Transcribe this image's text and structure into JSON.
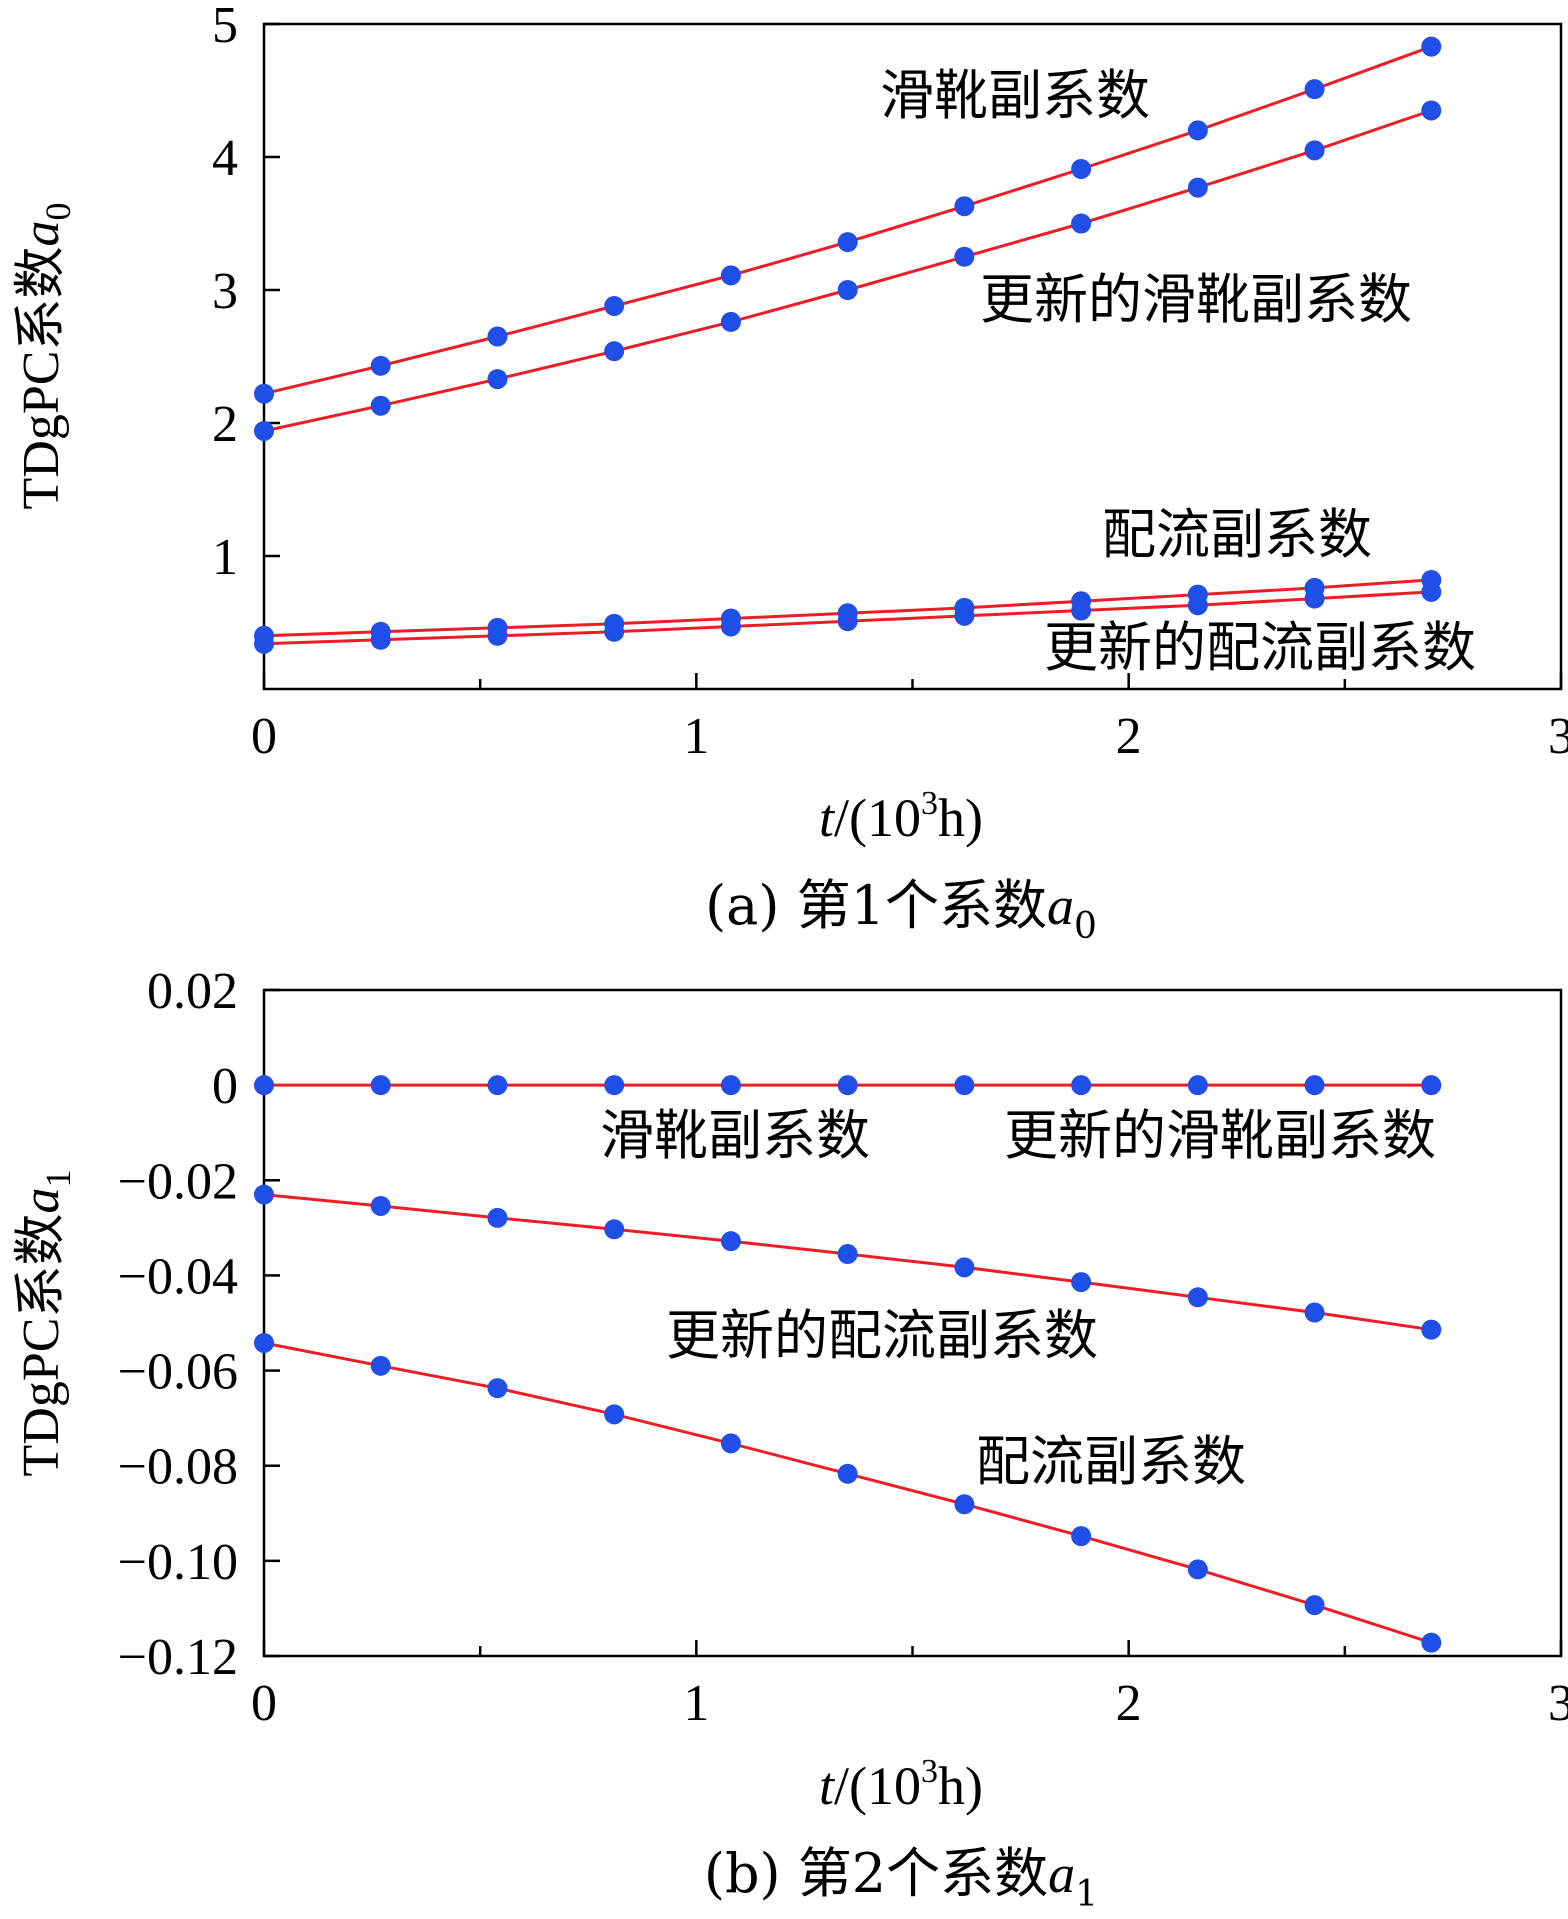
{
  "colors": {
    "line": "#ee1c25",
    "marker": "#1f4fe6",
    "axis": "#000000",
    "text": "#000000"
  },
  "chart_data": [
    {
      "id": "a",
      "type": "line",
      "caption": {
        "prefix": "(a) 第1个系数",
        "var": "a",
        "sub": "0"
      },
      "ylabel": {
        "prefix": "TDgPC系数",
        "var": "a",
        "sub": "0"
      },
      "xlabel": {
        "var": "t",
        "rest1": "/(10",
        "sup": "3",
        "rest2": "h)"
      },
      "xlim": [
        0,
        3
      ],
      "ylim": [
        0,
        5
      ],
      "xticks": [
        0,
        1,
        2,
        3
      ],
      "xtick_labels": [
        "0",
        "1",
        "2",
        "3"
      ],
      "yticks": [
        1,
        2,
        3,
        4,
        5
      ],
      "ytick_labels": [
        "1",
        "2",
        "3",
        "4",
        "5"
      ],
      "x": [
        0,
        0.27,
        0.54,
        0.81,
        1.08,
        1.35,
        1.62,
        1.89,
        2.16,
        2.43,
        2.7
      ],
      "series": [
        {
          "name": "滑靴副系数",
          "values": [
            2.22,
            2.43,
            2.65,
            2.88,
            3.11,
            3.36,
            3.63,
            3.91,
            4.2,
            4.51,
            4.83
          ]
        },
        {
          "name": "更新的滑靴副系数",
          "values": [
            1.94,
            2.13,
            2.33,
            2.54,
            2.76,
            3.0,
            3.25,
            3.5,
            3.77,
            4.05,
            4.35
          ]
        },
        {
          "name": "配流副系数",
          "values": [
            0.4,
            0.43,
            0.46,
            0.49,
            0.53,
            0.57,
            0.61,
            0.66,
            0.71,
            0.76,
            0.82
          ]
        },
        {
          "name": "更新的配流副系数",
          "values": [
            0.34,
            0.37,
            0.4,
            0.43,
            0.47,
            0.51,
            0.55,
            0.59,
            0.63,
            0.68,
            0.73
          ]
        }
      ],
      "annotations": [
        "滑靴副系数",
        "更新的滑靴副系数",
        "配流副系数",
        "更新的配流副系数"
      ]
    },
    {
      "id": "b",
      "type": "line",
      "caption": {
        "prefix": "(b) 第2个系数",
        "var": "a",
        "sub": "1"
      },
      "ylabel": {
        "prefix": "TDgPC系数",
        "var": "a",
        "sub": "1"
      },
      "xlabel": {
        "var": "t",
        "rest1": "/(10",
        "sup": "3",
        "rest2": "h)"
      },
      "xlim": [
        0,
        3
      ],
      "ylim": [
        -0.12,
        0.02
      ],
      "xticks": [
        0,
        1,
        2,
        3
      ],
      "xtick_labels": [
        "0",
        "1",
        "2",
        "3"
      ],
      "yticks": [
        0.02,
        0,
        -0.02,
        -0.04,
        -0.06,
        -0.08,
        -0.1,
        -0.12
      ],
      "ytick_labels": [
        "0.02",
        "0",
        "−0.02",
        "−0.04",
        "−0.06",
        "−0.08",
        "−0.10",
        "−0.12"
      ],
      "x": [
        0,
        0.27,
        0.54,
        0.81,
        1.08,
        1.35,
        1.62,
        1.89,
        2.16,
        2.43,
        2.7
      ],
      "series": [
        {
          "name": "滑靴副系数 / 更新的滑靴副系数",
          "values": [
            0,
            0,
            0,
            0,
            0,
            0,
            0,
            0,
            0,
            0,
            0
          ]
        },
        {
          "name": "更新的配流副系数",
          "values": [
            -0.023,
            -0.0254,
            -0.0279,
            -0.0303,
            -0.0328,
            -0.0355,
            -0.0383,
            -0.0414,
            -0.0446,
            -0.0478,
            -0.0514
          ]
        },
        {
          "name": "配流副系数",
          "values": [
            -0.0542,
            -0.059,
            -0.0637,
            -0.0692,
            -0.0753,
            -0.0817,
            -0.0881,
            -0.0948,
            -0.1018,
            -0.1093,
            -0.1172
          ]
        }
      ],
      "annotations": [
        "滑靴副系数",
        "更新的滑靴副系数",
        "更新的配流副系数",
        "配流副系数"
      ]
    }
  ]
}
